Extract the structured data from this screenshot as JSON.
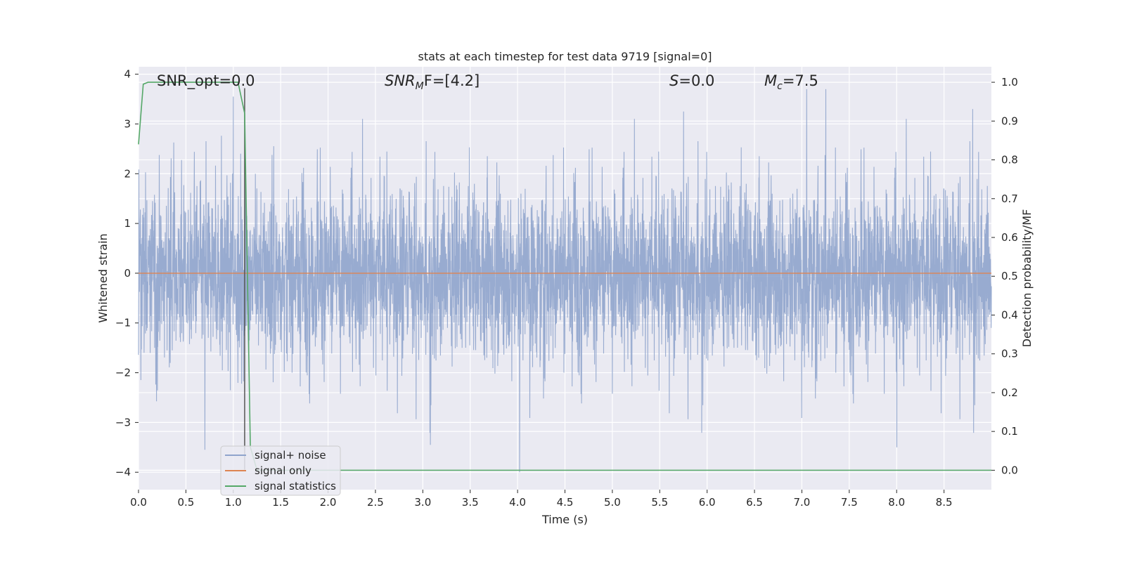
{
  "chart_data": {
    "type": "line",
    "title": "stats at each timestep for test data 9719 [signal=0]",
    "xlabel": "Time (s)",
    "ylabel": "Whitened strain",
    "y2label": "Detection probability/MF",
    "xlim": [
      0.0,
      9.0
    ],
    "ylim": [
      -4.35,
      4.15
    ],
    "y2lim": [
      -0.05,
      1.04
    ],
    "xticks": [
      0.0,
      0.5,
      1.0,
      1.5,
      2.0,
      2.5,
      3.0,
      3.5,
      4.0,
      4.5,
      5.0,
      5.5,
      6.0,
      6.5,
      7.0,
      7.5,
      8.0,
      8.5
    ],
    "xtick_labels": [
      "0.0",
      "0.5",
      "1.0",
      "1.5",
      "2.0",
      "2.5",
      "3.0",
      "3.5",
      "4.0",
      "4.5",
      "5.0",
      "5.5",
      "6.0",
      "6.5",
      "7.0",
      "7.5",
      "8.0",
      "8.5"
    ],
    "yticks": [
      -4,
      -3,
      -2,
      -1,
      0,
      1,
      2,
      3,
      4
    ],
    "ytick_labels": [
      "−4",
      "−3",
      "−2",
      "−1",
      "0",
      "1",
      "2",
      "3",
      "4"
    ],
    "y2ticks": [
      0.0,
      0.1,
      0.2,
      0.3,
      0.4,
      0.5,
      0.6,
      0.7,
      0.8,
      0.9,
      1.0
    ],
    "y2tick_labels": [
      "0.0",
      "0.1",
      "0.2",
      "0.3",
      "0.4",
      "0.5",
      "0.6",
      "0.7",
      "0.8",
      "0.9",
      "1.0"
    ],
    "grid": true,
    "legend_position": "lower-left",
    "annotations": {
      "snr_opt": "SNR_opt=0.0",
      "snr_mf": "SNR",
      "snr_mf_sub": "M",
      "snr_mf_rest": "F=[4.2]",
      "s_stat": "=0.0",
      "s_stat_var": "S",
      "mc": "=7.5",
      "mc_var": "M",
      "mc_sub": "c"
    },
    "marker_x": 1.12,
    "series": [
      {
        "name": "signal+ noise",
        "color": "#8fa4cc",
        "x_range": [
          0.0,
          9.0
        ],
        "typical_envelope": [
          -1.4,
          1.4
        ],
        "max_peak": 3.7,
        "min_peak": -4.0,
        "sample_peaks": [
          {
            "x": 1.0,
            "y": 3.55
          },
          {
            "x": 7.05,
            "y": 3.7
          },
          {
            "x": 7.25,
            "y": 3.7
          },
          {
            "x": 4.02,
            "y": -4.0
          },
          {
            "x": 0.7,
            "y": -3.55
          },
          {
            "x": 8.0,
            "y": -3.5
          },
          {
            "x": 3.08,
            "y": -3.45
          },
          {
            "x": 5.75,
            "y": 3.25
          },
          {
            "x": 8.8,
            "y": 3.3
          }
        ]
      },
      {
        "name": "signal only",
        "color": "#dd8452",
        "x": [
          0.0,
          9.0
        ],
        "values": [
          0.0,
          0.0
        ]
      },
      {
        "name": "signal statistics",
        "color": "#55a868",
        "axis": "right",
        "x": [
          0.0,
          0.05,
          0.1,
          0.2,
          0.5,
          1.0,
          1.05,
          1.12,
          1.18,
          1.25,
          2.0,
          9.0
        ],
        "values": [
          0.84,
          0.995,
          1.0,
          1.0,
          1.0,
          1.0,
          1.0,
          0.92,
          0.06,
          0.0,
          0.0,
          0.0
        ]
      }
    ]
  },
  "legend": {
    "items": [
      "signal+ noise",
      "signal only",
      "signal statistics"
    ]
  },
  "colors": {
    "background": "#eaeaf2",
    "grid": "#ffffff",
    "noise": "#8fa4cc",
    "signal": "#dd8452",
    "statistics": "#55a868",
    "marker": "#555555"
  }
}
